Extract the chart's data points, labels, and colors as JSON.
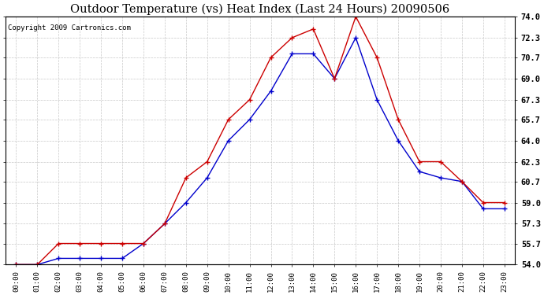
{
  "title": "Outdoor Temperature (vs) Heat Index (Last 24 Hours) 20090506",
  "copyright": "Copyright 2009 Cartronics.com",
  "x_labels": [
    "00:00",
    "01:00",
    "02:00",
    "03:00",
    "04:00",
    "05:00",
    "06:00",
    "07:00",
    "08:00",
    "09:00",
    "10:00",
    "11:00",
    "12:00",
    "13:00",
    "14:00",
    "15:00",
    "16:00",
    "17:00",
    "18:00",
    "19:00",
    "20:00",
    "21:00",
    "22:00",
    "23:00"
  ],
  "temp_data": [
    54.0,
    54.0,
    55.7,
    55.7,
    55.7,
    55.7,
    55.7,
    57.3,
    61.0,
    62.3,
    65.7,
    67.3,
    70.7,
    72.3,
    73.0,
    69.0,
    74.0,
    70.7,
    65.7,
    62.3,
    62.3,
    60.7,
    59.0,
    59.0
  ],
  "heat_index_data": [
    54.0,
    54.0,
    54.5,
    54.5,
    54.5,
    54.5,
    55.7,
    57.3,
    59.0,
    61.0,
    64.0,
    65.7,
    68.0,
    71.0,
    71.0,
    69.0,
    72.3,
    67.3,
    64.0,
    61.5,
    61.0,
    60.7,
    58.5,
    58.5
  ],
  "temp_color": "#cc0000",
  "heat_index_color": "#0000cc",
  "ylim_min": 54.0,
  "ylim_max": 74.0,
  "yticks": [
    54.0,
    55.7,
    57.3,
    59.0,
    60.7,
    62.3,
    64.0,
    65.7,
    67.3,
    69.0,
    70.7,
    72.3,
    74.0
  ],
  "ytick_labels": [
    "54.0",
    "55.7",
    "57.3",
    "59.0",
    "60.7",
    "62.3",
    "64.0",
    "65.7",
    "67.3",
    "69.0",
    "70.7",
    "72.3",
    "74.0"
  ],
  "background_color": "#ffffff",
  "grid_color": "#c8c8c8",
  "title_fontsize": 10.5,
  "copyright_fontsize": 6.5,
  "tick_fontsize": 7.5,
  "xtick_fontsize": 6.5
}
